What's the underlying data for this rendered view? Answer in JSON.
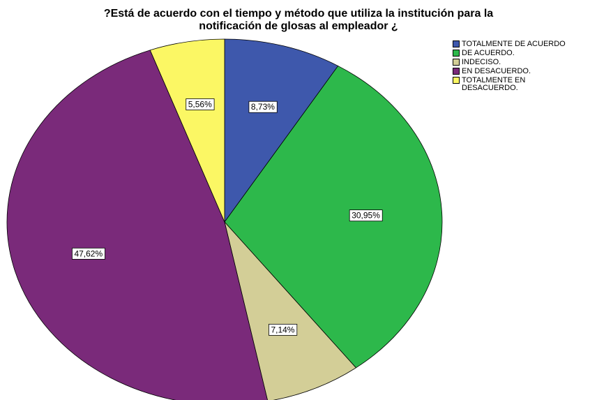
{
  "chart_data": {
    "type": "pie",
    "title": [
      "?Está de acuerdo con el tiempo y método que utiliza la institución para la",
      "notificación de glosas al empleador ¿"
    ],
    "categories": [
      "TOTALMENTE DE ACUERDO",
      "DE ACUERDO.",
      "INDECISO.",
      "EN DESACUERDO.",
      "TOTALMENTE EN DESACUERDO."
    ],
    "values": [
      8.73,
      30.95,
      7.14,
      47.62,
      5.56
    ],
    "value_labels": [
      "8,73%",
      "30,95%",
      "7,14%",
      "47,62%",
      "5,56%"
    ],
    "colors": [
      "#3e58ac",
      "#2db84b",
      "#d3ce97",
      "#7a2a7a",
      "#fbf764"
    ],
    "legend": "top-right"
  }
}
